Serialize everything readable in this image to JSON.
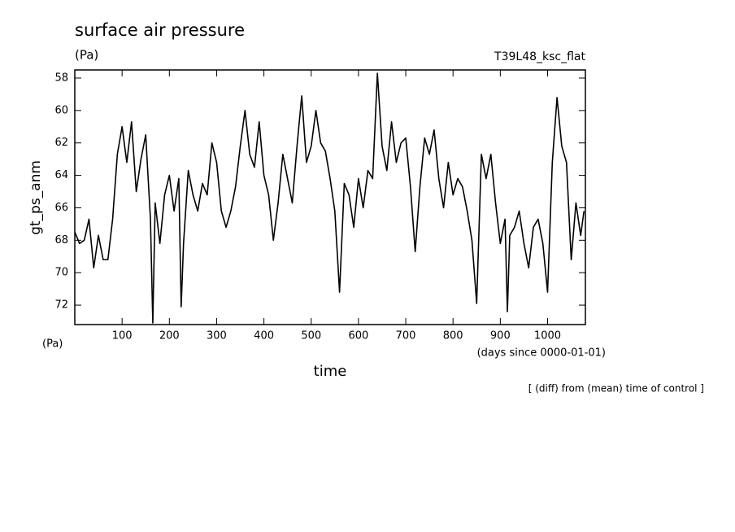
{
  "chart_data": {
    "type": "line",
    "title": "surface air pressure",
    "units_top": "(Pa)",
    "experiment": "T39L48_ksc_flat",
    "y_label": "gt_ps_anm",
    "units_bottom": "(Pa)",
    "x_label": "time",
    "x_units": "(days since 0000-01-01)",
    "note": "[ (diff) from (mean) time of control ]",
    "color": "#000000",
    "x": [
      0,
      10,
      20,
      30,
      40,
      50,
      60,
      70,
      80,
      90,
      100,
      110,
      120,
      130,
      140,
      150,
      160,
      165,
      170,
      180,
      190,
      200,
      210,
      220,
      225,
      230,
      240,
      250,
      260,
      270,
      280,
      290,
      300,
      310,
      320,
      330,
      340,
      350,
      360,
      370,
      380,
      390,
      400,
      410,
      420,
      430,
      440,
      450,
      460,
      470,
      480,
      490,
      500,
      510,
      520,
      530,
      540,
      550,
      560,
      570,
      580,
      590,
      600,
      610,
      620,
      630,
      640,
      650,
      660,
      670,
      680,
      690,
      700,
      710,
      720,
      730,
      740,
      750,
      760,
      770,
      780,
      790,
      800,
      810,
      820,
      830,
      840,
      850,
      860,
      870,
      880,
      890,
      900,
      910,
      915,
      920,
      930,
      940,
      950,
      960,
      970,
      980,
      990,
      1000,
      1010,
      1020,
      1030,
      1040,
      1050,
      1060,
      1070,
      1077
    ],
    "values": [
      67.5,
      68.2,
      68,
      66.7,
      69.7,
      67.7,
      69.2,
      69.2,
      66.7,
      62.7,
      61,
      63.2,
      60.7,
      65,
      63,
      61.5,
      66.7,
      73.1,
      65.7,
      68.2,
      65.2,
      64,
      66.2,
      64.2,
      72.1,
      68.2,
      63.7,
      65.2,
      66.2,
      64.5,
      65.2,
      62,
      63.2,
      66.2,
      67.2,
      66.2,
      64.7,
      62.2,
      60,
      62.7,
      63.5,
      60.7,
      64,
      65.2,
      68,
      65.7,
      62.7,
      64.2,
      65.7,
      62.2,
      59.1,
      63.2,
      62.2,
      60,
      62,
      62.5,
      64.2,
      66.2,
      71.2,
      64.5,
      65.2,
      67.2,
      64.2,
      66,
      63.7,
      64.2,
      57.7,
      62.2,
      63.7,
      60.7,
      63.2,
      62,
      61.7,
      64.7,
      68.7,
      64.7,
      61.7,
      62.7,
      61.2,
      64.2,
      66,
      63.2,
      65.2,
      64.2,
      64.7,
      66.2,
      68,
      71.9,
      62.7,
      64.2,
      62.7,
      65.7,
      68.2,
      66.7,
      72.4,
      67.7,
      67.2,
      66.2,
      68.2,
      69.7,
      67.2,
      66.7,
      68.2,
      71.2,
      63.2,
      59.2,
      62.2,
      63.2,
      69.2,
      65.7,
      67.7,
      66.2
    ],
    "xlim": [
      0,
      1080
    ],
    "ylim": [
      73.2,
      57.5
    ],
    "xticks": [
      100,
      200,
      300,
      400,
      500,
      600,
      700,
      800,
      900,
      1000
    ],
    "yticks": [
      58,
      60,
      62,
      64,
      66,
      68,
      70,
      72
    ]
  }
}
